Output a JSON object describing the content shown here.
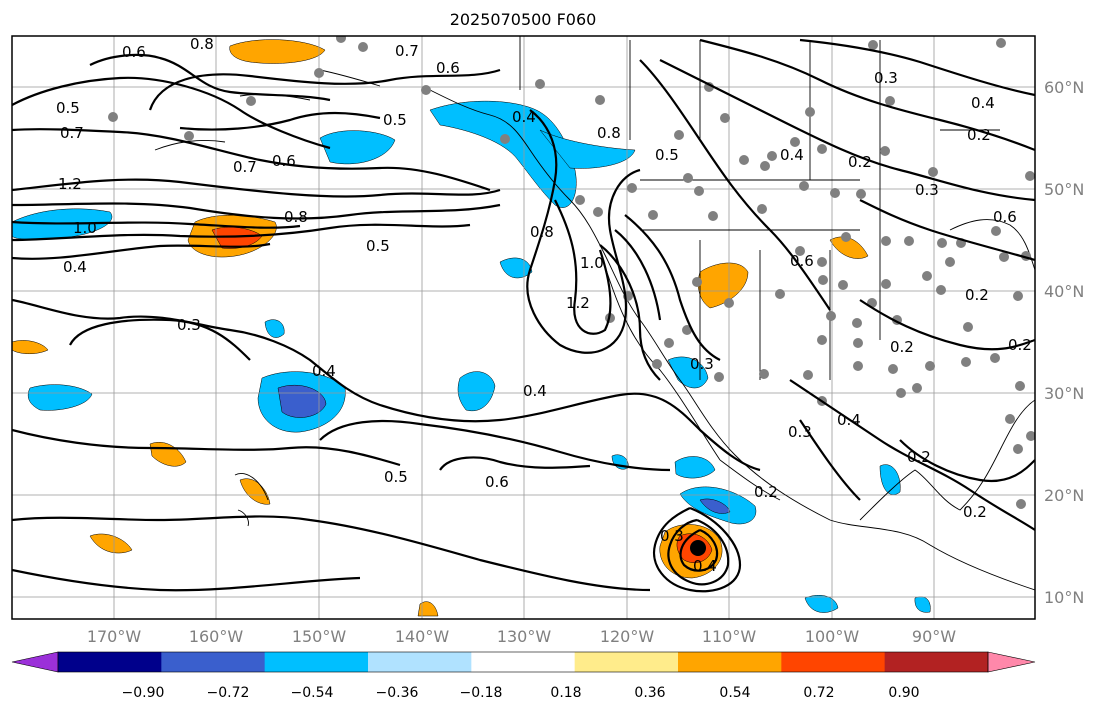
{
  "title": "2025070500 F060",
  "longitude_labels": [
    "170°W",
    "160°W",
    "150°W",
    "140°W",
    "130°W",
    "120°W",
    "110°W",
    "100°W",
    "90°W"
  ],
  "latitude_labels": [
    "60°N",
    "50°N",
    "40°N",
    "30°N",
    "20°N",
    "10°N"
  ],
  "colorbar": {
    "ticks": [
      "−0.90",
      "−0.72",
      "−0.54",
      "−0.36",
      "−0.18",
      "0.18",
      "0.36",
      "0.54",
      "0.72",
      "0.90"
    ],
    "colors": [
      "#9b30d9",
      "#00008b",
      "#3a5fcd",
      "#00bfff",
      "#b0e2ff",
      "#ffffff",
      "#ffec8b",
      "#ffa500",
      "#ff4500",
      "#b22222",
      "#ff88aa"
    ]
  },
  "contour_labels": [
    "0.6",
    "0.8",
    "0.7",
    "0.6",
    "0.5",
    "0.7",
    "0.6",
    "0.7",
    "1.2",
    "0.8",
    "1.0",
    "0.4",
    "0.5",
    "0.3",
    "0.4",
    "0.5",
    "0.4",
    "0.4",
    "0.8",
    "0.8",
    "1.0",
    "1.2",
    "0.5",
    "0.4",
    "0.6",
    "0.4",
    "0.3",
    "0.6",
    "0.5",
    "0.2",
    "0.2",
    "0.4",
    "0.3",
    "0.2",
    "0.2",
    "0.2",
    "0.3",
    "0.2",
    "0.2",
    "0.3",
    "0.4",
    "0.3",
    "0.2",
    "0.6"
  ]
}
